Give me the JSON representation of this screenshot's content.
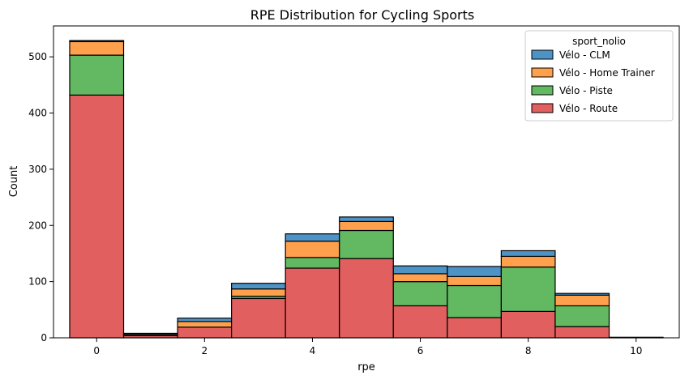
{
  "chart_data": {
    "type": "bar",
    "stacked": true,
    "title": "RPE Distribution for Cycling Sports",
    "xlabel": "rpe",
    "ylabel": "Count",
    "xlim": [
      -0.8,
      10.8
    ],
    "ylim": [
      0,
      555
    ],
    "xticks": [
      0,
      2,
      4,
      6,
      8,
      10
    ],
    "yticks": [
      0,
      100,
      200,
      300,
      400,
      500
    ],
    "bin_width": 1,
    "categories": [
      0,
      1,
      2,
      3,
      4,
      5,
      6,
      7,
      8,
      9,
      10
    ],
    "grid": false,
    "legend": {
      "title": "sport_nolio",
      "placement": "top-right",
      "items": [
        "Vélo - CLM",
        "Vélo - Home Trainer",
        "Vélo - Piste",
        "Vélo - Route"
      ]
    },
    "stack_order": [
      "Vélo - Route",
      "Vélo - Piste",
      "Vélo - Home Trainer",
      "Vélo - CLM"
    ],
    "series": [
      {
        "name": "Vélo - Route",
        "color": "#e15f5f",
        "values": [
          432,
          4,
          19,
          70,
          124,
          141,
          57,
          36,
          47,
          20,
          1
        ]
      },
      {
        "name": "Vélo - Piste",
        "color": "#62b962",
        "values": [
          71,
          0,
          0,
          4,
          19,
          50,
          43,
          57,
          79,
          37,
          0
        ]
      },
      {
        "name": "Vélo - Home Trainer",
        "color": "#ffa04d",
        "values": [
          24,
          2,
          10,
          13,
          29,
          16,
          14,
          16,
          19,
          19,
          0
        ]
      },
      {
        "name": "Vélo - CLM",
        "color": "#4e93c6",
        "values": [
          2,
          2,
          6,
          10,
          13,
          8,
          14,
          18,
          10,
          3,
          0
        ]
      }
    ]
  }
}
